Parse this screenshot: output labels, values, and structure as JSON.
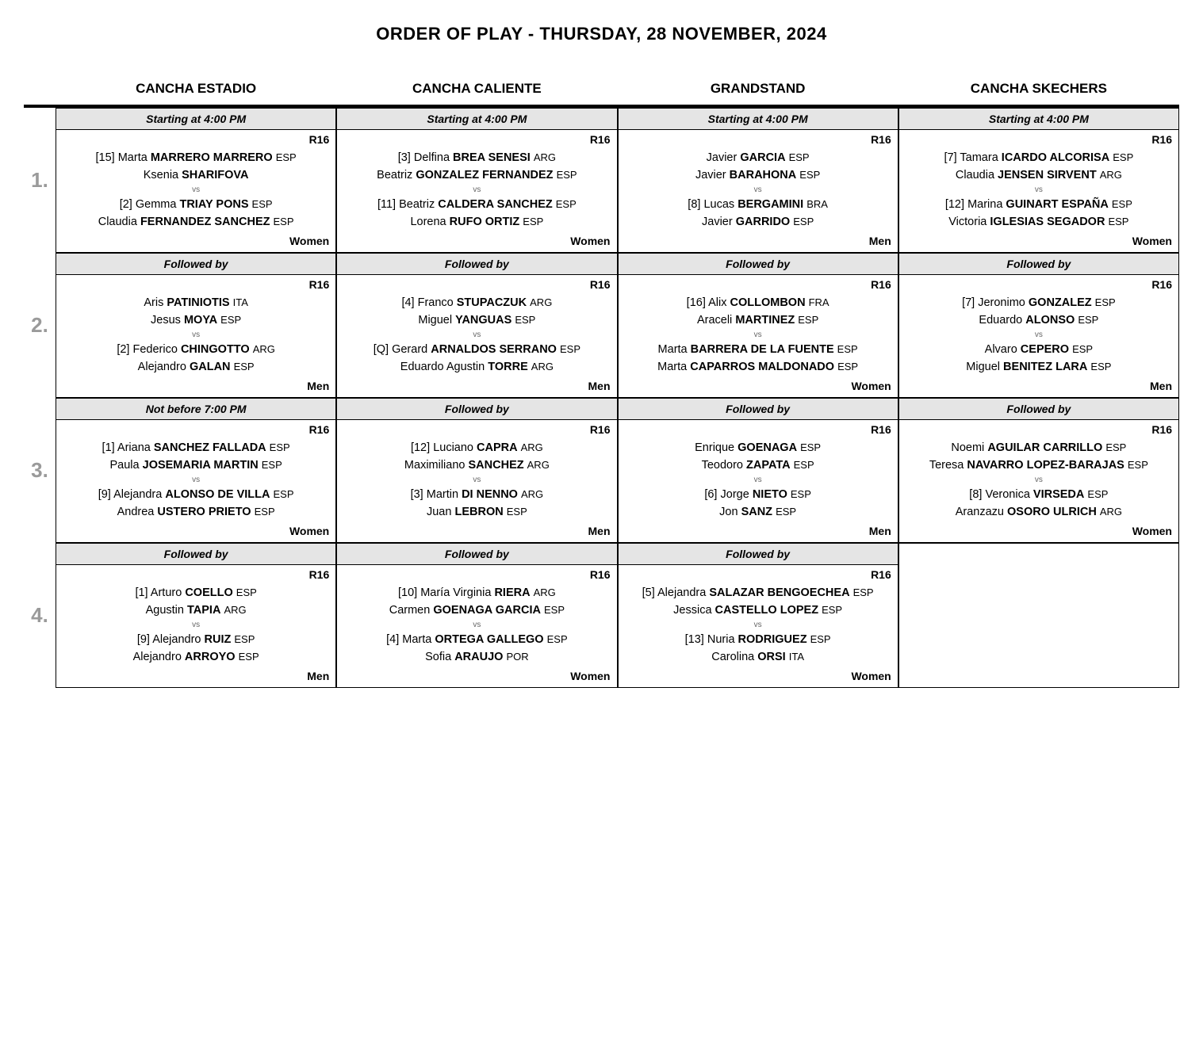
{
  "title": "ORDER OF PLAY - THURSDAY, 28 NOVEMBER, 2024",
  "courts": [
    "CANCHA ESTADIO",
    "CANCHA CALIENTE",
    "GRANDSTAND",
    "CANCHA SKECHERS"
  ],
  "row_labels": [
    "1.",
    "2.",
    "3.",
    "4."
  ],
  "vs_label": "vs",
  "rows": [
    {
      "cells": [
        {
          "time": "Starting at 4:00 PM",
          "round": "R16",
          "cat": "Women",
          "t1": [
            {
              "seed": "[15]",
              "first": "Marta",
              "last": "MARRERO MARRERO",
              "nat": "ESP"
            },
            {
              "seed": "",
              "first": "Ksenia",
              "last": "SHARIFOVA",
              "nat": ""
            }
          ],
          "t2": [
            {
              "seed": "[2]",
              "first": "Gemma",
              "last": "TRIAY PONS",
              "nat": "ESP"
            },
            {
              "seed": "",
              "first": "Claudia",
              "last": "FERNANDEZ SANCHEZ",
              "nat": "ESP"
            }
          ]
        },
        {
          "time": "Starting at 4:00 PM",
          "round": "R16",
          "cat": "Women",
          "t1": [
            {
              "seed": "[3]",
              "first": "Delfina",
              "last": "BREA SENESI",
              "nat": "ARG"
            },
            {
              "seed": "",
              "first": "Beatriz",
              "last": "GONZALEZ FERNANDEZ",
              "nat": "ESP"
            }
          ],
          "t2": [
            {
              "seed": "[11]",
              "first": "Beatriz",
              "last": "CALDERA SANCHEZ",
              "nat": "ESP"
            },
            {
              "seed": "",
              "first": "Lorena",
              "last": "RUFO ORTIZ",
              "nat": "ESP"
            }
          ]
        },
        {
          "time": "Starting at 4:00 PM",
          "round": "R16",
          "cat": "Men",
          "t1": [
            {
              "seed": "",
              "first": "Javier",
              "last": "GARCIA",
              "nat": "ESP"
            },
            {
              "seed": "",
              "first": "Javier",
              "last": "BARAHONA",
              "nat": "ESP"
            }
          ],
          "t2": [
            {
              "seed": "[8]",
              "first": "Lucas",
              "last": "BERGAMINI",
              "nat": "BRA"
            },
            {
              "seed": "",
              "first": "Javier",
              "last": "GARRIDO",
              "nat": "ESP"
            }
          ]
        },
        {
          "time": "Starting at 4:00 PM",
          "round": "R16",
          "cat": "Women",
          "t1": [
            {
              "seed": "[7]",
              "first": "Tamara",
              "last": "ICARDO ALCORISA",
              "nat": "ESP"
            },
            {
              "seed": "",
              "first": "Claudia",
              "last": "JENSEN SIRVENT",
              "nat": "ARG"
            }
          ],
          "t2": [
            {
              "seed": "[12]",
              "first": "Marina",
              "last": "GUINART ESPAÑA",
              "nat": "ESP"
            },
            {
              "seed": "",
              "first": "Victoria",
              "last": "IGLESIAS SEGADOR",
              "nat": "ESP"
            }
          ]
        }
      ]
    },
    {
      "cells": [
        {
          "time": "Followed by",
          "round": "R16",
          "cat": "Men",
          "t1": [
            {
              "seed": "",
              "first": "Aris",
              "last": "PATINIOTIS",
              "nat": "ITA"
            },
            {
              "seed": "",
              "first": "Jesus",
              "last": "MOYA",
              "nat": "ESP"
            }
          ],
          "t2": [
            {
              "seed": "[2]",
              "first": "Federico",
              "last": "CHINGOTTO",
              "nat": "ARG"
            },
            {
              "seed": "",
              "first": "Alejandro",
              "last": "GALAN",
              "nat": "ESP"
            }
          ]
        },
        {
          "time": "Followed by",
          "round": "R16",
          "cat": "Men",
          "t1": [
            {
              "seed": "[4]",
              "first": "Franco",
              "last": "STUPACZUK",
              "nat": "ARG"
            },
            {
              "seed": "",
              "first": "Miguel",
              "last": "YANGUAS",
              "nat": "ESP"
            }
          ],
          "t2": [
            {
              "seed": "[Q]",
              "first": "Gerard",
              "last": "ARNALDOS SERRANO",
              "nat": "ESP"
            },
            {
              "seed": "",
              "first": "Eduardo Agustin",
              "last": "TORRE",
              "nat": "ARG"
            }
          ]
        },
        {
          "time": "Followed by",
          "round": "R16",
          "cat": "Women",
          "t1": [
            {
              "seed": "[16]",
              "first": "Alix",
              "last": "COLLOMBON",
              "nat": "FRA"
            },
            {
              "seed": "",
              "first": "Araceli",
              "last": "MARTINEZ",
              "nat": "ESP"
            }
          ],
          "t2": [
            {
              "seed": "",
              "first": "Marta",
              "last": "BARRERA DE LA FUENTE",
              "nat": "ESP"
            },
            {
              "seed": "",
              "first": "Marta",
              "last": "CAPARROS MALDONADO",
              "nat": "ESP"
            }
          ]
        },
        {
          "time": "Followed by",
          "round": "R16",
          "cat": "Men",
          "t1": [
            {
              "seed": "[7]",
              "first": "Jeronimo",
              "last": "GONZALEZ",
              "nat": "ESP"
            },
            {
              "seed": "",
              "first": "Eduardo",
              "last": "ALONSO",
              "nat": "ESP"
            }
          ],
          "t2": [
            {
              "seed": "",
              "first": "Alvaro",
              "last": "CEPERO",
              "nat": "ESP"
            },
            {
              "seed": "",
              "first": "Miguel",
              "last": "BENITEZ LARA",
              "nat": "ESP"
            }
          ]
        }
      ]
    },
    {
      "cells": [
        {
          "time": "Not before 7:00 PM",
          "round": "R16",
          "cat": "Women",
          "t1": [
            {
              "seed": "[1]",
              "first": "Ariana",
              "last": "SANCHEZ FALLADA",
              "nat": "ESP"
            },
            {
              "seed": "",
              "first": "Paula",
              "last": "JOSEMARIA MARTIN",
              "nat": "ESP"
            }
          ],
          "t2": [
            {
              "seed": "[9]",
              "first": "Alejandra",
              "last": "ALONSO DE VILLA",
              "nat": "ESP"
            },
            {
              "seed": "",
              "first": "Andrea",
              "last": "USTERO PRIETO",
              "nat": "ESP"
            }
          ]
        },
        {
          "time": "Followed by",
          "round": "R16",
          "cat": "Men",
          "t1": [
            {
              "seed": "[12]",
              "first": "Luciano",
              "last": "CAPRA",
              "nat": "ARG"
            },
            {
              "seed": "",
              "first": "Maximiliano",
              "last": "SANCHEZ",
              "nat": "ARG"
            }
          ],
          "t2": [
            {
              "seed": "[3]",
              "first": "Martin",
              "last": "DI NENNO",
              "nat": "ARG"
            },
            {
              "seed": "",
              "first": "Juan",
              "last": "LEBRON",
              "nat": "ESP"
            }
          ]
        },
        {
          "time": "Followed by",
          "round": "R16",
          "cat": "Men",
          "t1": [
            {
              "seed": "",
              "first": "Enrique",
              "last": "GOENAGA",
              "nat": "ESP"
            },
            {
              "seed": "",
              "first": "Teodoro",
              "last": "ZAPATA",
              "nat": "ESP"
            }
          ],
          "t2": [
            {
              "seed": "[6]",
              "first": "Jorge",
              "last": "NIETO",
              "nat": "ESP"
            },
            {
              "seed": "",
              "first": "Jon",
              "last": "SANZ",
              "nat": "ESP"
            }
          ]
        },
        {
          "time": "Followed by",
          "round": "R16",
          "cat": "Women",
          "t1": [
            {
              "seed": "",
              "first": "Noemi",
              "last": "AGUILAR CARRILLO",
              "nat": "ESP"
            },
            {
              "seed": "",
              "first": "Teresa",
              "last": "NAVARRO LOPEZ-BARAJAS",
              "nat": "ESP"
            }
          ],
          "t2": [
            {
              "seed": "[8]",
              "first": "Veronica",
              "last": "VIRSEDA",
              "nat": "ESP"
            },
            {
              "seed": "",
              "first": "Aranzazu",
              "last": "OSORO ULRICH",
              "nat": "ARG"
            }
          ]
        }
      ]
    },
    {
      "cells": [
        {
          "time": "Followed by",
          "round": "R16",
          "cat": "Men",
          "t1": [
            {
              "seed": "[1]",
              "first": "Arturo",
              "last": "COELLO",
              "nat": "ESP"
            },
            {
              "seed": "",
              "first": "Agustin",
              "last": "TAPIA",
              "nat": "ARG"
            }
          ],
          "t2": [
            {
              "seed": "[9]",
              "first": "Alejandro",
              "last": "RUIZ",
              "nat": "ESP"
            },
            {
              "seed": "",
              "first": "Alejandro",
              "last": "ARROYO",
              "nat": "ESP"
            }
          ]
        },
        {
          "time": "Followed by",
          "round": "R16",
          "cat": "Women",
          "t1": [
            {
              "seed": "[10]",
              "first": "María Virginia",
              "last": "RIERA",
              "nat": "ARG"
            },
            {
              "seed": "",
              "first": "Carmen",
              "last": "GOENAGA GARCIA",
              "nat": "ESP"
            }
          ],
          "t2": [
            {
              "seed": "[4]",
              "first": "Marta",
              "last": "ORTEGA GALLEGO",
              "nat": "ESP"
            },
            {
              "seed": "",
              "first": "Sofia",
              "last": "ARAUJO",
              "nat": "POR"
            }
          ]
        },
        {
          "time": "Followed by",
          "round": "R16",
          "cat": "Women",
          "t1": [
            {
              "seed": "[5]",
              "first": "Alejandra",
              "last": "SALAZAR BENGOECHEA",
              "nat": "ESP"
            },
            {
              "seed": "",
              "first": "Jessica",
              "last": "CASTELLO LOPEZ",
              "nat": "ESP"
            }
          ],
          "t2": [
            {
              "seed": "[13]",
              "first": "Nuria",
              "last": "RODRIGUEZ",
              "nat": "ESP"
            },
            {
              "seed": "",
              "first": "Carolina",
              "last": "ORSI",
              "nat": "ITA"
            }
          ]
        },
        null
      ]
    }
  ]
}
